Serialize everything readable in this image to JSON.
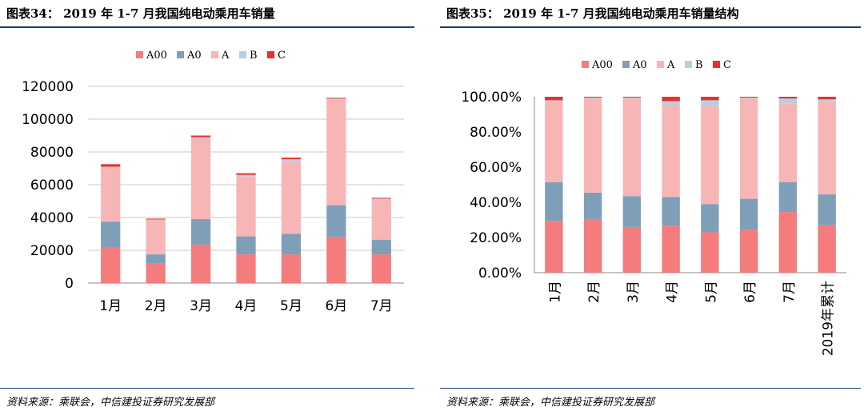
{
  "left": {
    "title": "图表34：  2019 年 1-7 月我国纯电动乘用车销量",
    "source": "资料来源：乘联会，中信建投证券研究发展部"
  },
  "right": {
    "title": "图表35：  2019 年 1-7 月我国纯电动乘用车销量结构",
    "source": "资料来源：乘联会，中信建投证券研究发展部"
  },
  "colors": {
    "A00": "#f47c7c",
    "A0": "#7f9fb8",
    "A": "#f7b5b5",
    "B": "#b9cfe0",
    "C": "#e8302f",
    "grid": "#c8c8c8",
    "rule": "#1f3e6b"
  },
  "chart_data": [
    {
      "type": "bar",
      "stacked": true,
      "title": "2019 年 1-7 月我国纯电动乘用车销量",
      "categories": [
        "1月",
        "2月",
        "3月",
        "4月",
        "5月",
        "6月",
        "7月"
      ],
      "series": [
        {
          "name": "A00",
          "values": [
            21500,
            12000,
            23500,
            17500,
            17500,
            28000,
            17500
          ]
        },
        {
          "name": "A0",
          "values": [
            16000,
            5500,
            15500,
            11000,
            12500,
            19500,
            9000
          ]
        },
        {
          "name": "A",
          "values": [
            33000,
            21000,
            49500,
            36500,
            44000,
            64500,
            24500
          ]
        },
        {
          "name": "B",
          "values": [
            500,
            300,
            500,
            1000,
            1500,
            500,
            500
          ]
        },
        {
          "name": "C",
          "values": [
            1500,
            500,
            1000,
            1000,
            1000,
            500,
            500
          ]
        }
      ],
      "ylim": [
        0,
        120000
      ],
      "yticks": [
        "0",
        "20000",
        "40000",
        "60000",
        "80000",
        "100000",
        "120000"
      ],
      "grid": true,
      "legend_position": "top"
    },
    {
      "type": "bar",
      "stacked": true,
      "percent": true,
      "title": "2019 年 1-7 月我国纯电动乘用车销量结构",
      "categories": [
        "1月",
        "2月",
        "3月",
        "4月",
        "5月",
        "6月",
        "7月",
        "2019年累计"
      ],
      "series": [
        {
          "name": "A00",
          "values": [
            29.5,
            30.5,
            26,
            26.5,
            23,
            24.5,
            34.5,
            27
          ]
        },
        {
          "name": "A0",
          "values": [
            22,
            15,
            17.5,
            16.5,
            16,
            17.5,
            17,
            17.5
          ]
        },
        {
          "name": "A",
          "values": [
            46,
            53.5,
            55.5,
            52,
            55.5,
            57,
            44.5,
            52.5
          ]
        },
        {
          "name": "B",
          "values": [
            0.5,
            0.5,
            0.5,
            2.5,
            3.5,
            0.5,
            3,
            1.5
          ]
        },
        {
          "name": "C",
          "values": [
            2,
            0.5,
            0.5,
            2.5,
            2,
            0.5,
            1,
            1.5
          ]
        }
      ],
      "ylim": [
        0,
        100
      ],
      "yticks": [
        "0.00%",
        "20.00%",
        "40.00%",
        "60.00%",
        "80.00%",
        "100.00%"
      ],
      "grid": false,
      "legend_position": "top"
    }
  ]
}
